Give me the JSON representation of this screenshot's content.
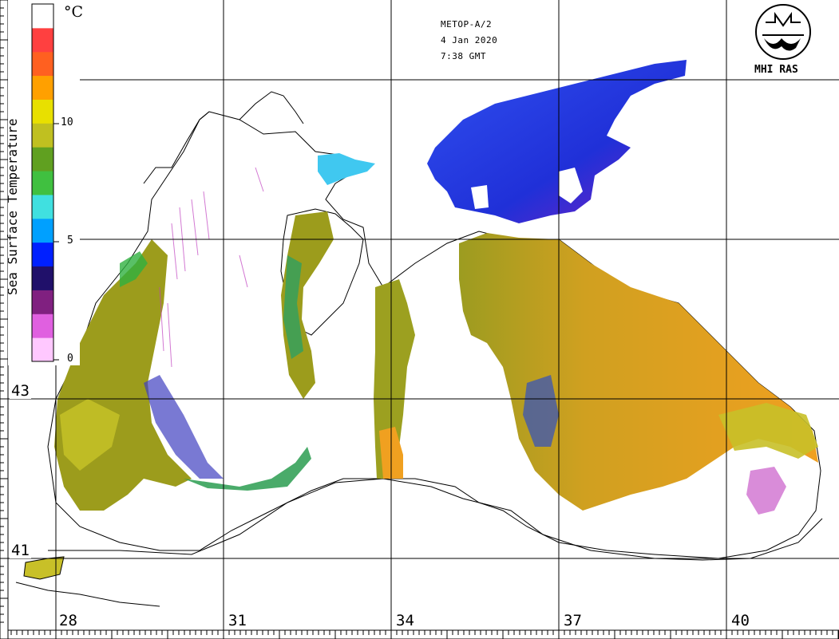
{
  "header": {
    "satellite": "METOP-A/2",
    "date": "4 Jan 2020",
    "time": "7:38 GMT"
  },
  "logo": {
    "label": "MHI RAS",
    "icon": "mhi-ras-logo-icon"
  },
  "colorbar": {
    "title": "Sea Surface Temperature",
    "unit": "°C",
    "ticks": [
      "10",
      "5",
      "0"
    ],
    "range": [
      0,
      15
    ],
    "colors": [
      "#ffc8ff",
      "#e060e0",
      "#802080",
      "#20106a",
      "#0020ff",
      "#00a0ff",
      "#40e0e0",
      "#40c040",
      "#60a020",
      "#c0c020",
      "#e8e000",
      "#ffa000",
      "#ff6020",
      "#ff4040",
      "#ffffff"
    ]
  },
  "latitude_labels": [
    "43",
    "41"
  ],
  "longitude_labels": [
    "28",
    "31",
    "34",
    "37",
    "40"
  ],
  "palette": {
    "warm": "#f0a020",
    "olive": "#9c9c20",
    "yellow_green": "#c0c020",
    "cold_blue": "#2040f0",
    "magenta": "#c040c0",
    "coast": "#000000"
  }
}
